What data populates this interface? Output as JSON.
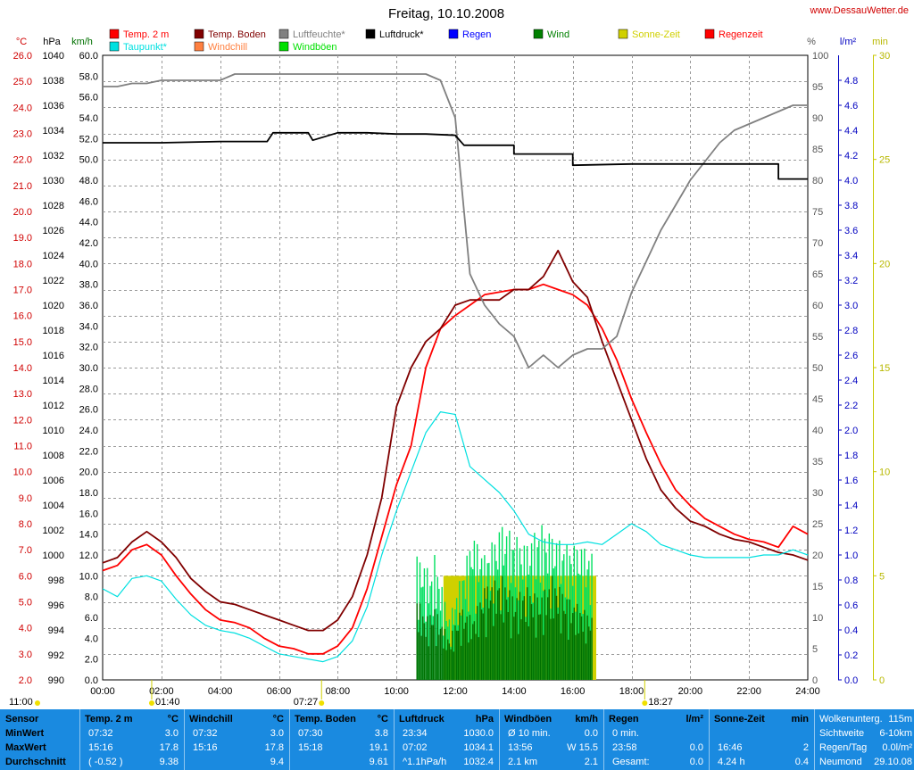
{
  "chart_data": {
    "type": "line",
    "title": "Freitag, 10.10.2008",
    "site": "www.DessauWetter.de",
    "time_ticks": [
      "00:00",
      "02:00",
      "04:00",
      "06:00",
      "08:00",
      "10:00",
      "12:00",
      "14:00",
      "16:00",
      "18:00",
      "20:00",
      "22:00",
      "24:00"
    ],
    "x_range_hours": [
      0,
      24
    ],
    "grid": true,
    "axes": {
      "temp": {
        "unit": "°C",
        "range": [
          2.0,
          26.0
        ],
        "step": 1.0,
        "color": "#d00000"
      },
      "pressure": {
        "unit": "hPa",
        "range": [
          990,
          1040
        ],
        "step": 2,
        "color": "#000000"
      },
      "wind": {
        "unit": "km/h",
        "range": [
          0.0,
          60.0
        ],
        "step": 2.0,
        "color": "#007000"
      },
      "humidity": {
        "unit": "%",
        "range": [
          0,
          100
        ],
        "step": 5,
        "color": "#555555"
      },
      "rain": {
        "unit": "l/m²",
        "range": [
          0.0,
          5.0
        ],
        "step": 0.2,
        "color": "#0000c0"
      },
      "sun": {
        "unit": "min",
        "range": [
          0,
          30
        ],
        "step": 5,
        "color": "#b8b800"
      }
    },
    "legend": [
      {
        "label": "Temp. 2 m",
        "color": "#ff0000"
      },
      {
        "label": "Taupunkt*",
        "color": "#00e0e0"
      },
      {
        "label": "Temp. Boden",
        "color": "#800000"
      },
      {
        "label": "Windchill",
        "color": "#ff8040"
      },
      {
        "label": "Luftfeuchte*",
        "color": "#808080"
      },
      {
        "label": "Windböen",
        "color": "#00e000"
      },
      {
        "label": "Luftdruck*",
        "color": "#000000"
      },
      {
        "label": "Regen",
        "color": "#0000ff"
      },
      {
        "label": "Wind",
        "color": "#008000"
      },
      {
        "label": "Sonne-Zeit",
        "color": "#d0d000"
      },
      {
        "label": "Regenzeit",
        "color": "#ff0000"
      }
    ],
    "series": [
      {
        "name": "Temp. 2 m",
        "axis": "temp",
        "color": "#ff0000",
        "x": [
          0,
          0.5,
          1,
          1.5,
          2,
          2.5,
          3,
          3.5,
          4,
          4.5,
          5,
          5.5,
          6,
          6.5,
          7,
          7.5,
          8,
          8.5,
          9,
          9.5,
          10,
          10.5,
          11,
          11.5,
          12,
          12.5,
          13,
          13.5,
          14,
          14.5,
          15,
          15.5,
          16,
          16.5,
          17,
          17.5,
          18,
          18.5,
          19,
          19.5,
          20,
          20.5,
          21,
          21.5,
          22,
          22.5,
          23,
          23.5,
          24
        ],
        "y": [
          6.2,
          6.4,
          7.0,
          7.2,
          6.8,
          6.0,
          5.3,
          4.7,
          4.3,
          4.2,
          4.0,
          3.6,
          3.3,
          3.2,
          3.0,
          3.0,
          3.3,
          4.0,
          5.5,
          7.5,
          9.5,
          11.0,
          14.0,
          15.5,
          16.0,
          16.4,
          16.8,
          16.9,
          17.0,
          17.0,
          17.2,
          17.0,
          16.8,
          16.4,
          15.5,
          14.3,
          12.8,
          11.5,
          10.3,
          9.3,
          8.7,
          8.2,
          7.9,
          7.6,
          7.4,
          7.3,
          7.1,
          7.9,
          7.6
        ]
      },
      {
        "name": "Temp. Boden",
        "axis": "temp",
        "color": "#800000",
        "x": [
          0,
          0.5,
          1,
          1.5,
          2,
          2.5,
          3,
          3.5,
          4,
          4.5,
          5,
          5.5,
          6,
          6.5,
          7,
          7.5,
          8,
          8.5,
          9,
          9.5,
          10,
          10.5,
          11,
          11.5,
          12,
          12.5,
          13,
          13.5,
          14,
          14.5,
          15,
          15.5,
          16,
          16.5,
          17,
          17.5,
          18,
          18.5,
          19,
          19.5,
          20,
          20.5,
          21,
          21.5,
          22,
          22.5,
          23,
          23.5,
          24
        ],
        "y": [
          6.5,
          6.7,
          7.3,
          7.7,
          7.3,
          6.7,
          5.9,
          5.4,
          5.0,
          4.9,
          4.7,
          4.5,
          4.3,
          4.1,
          3.9,
          3.9,
          4.3,
          5.2,
          6.8,
          9.0,
          12.5,
          14.0,
          15.0,
          15.5,
          16.4,
          16.6,
          16.6,
          16.6,
          17.0,
          17.0,
          17.5,
          18.5,
          17.3,
          16.7,
          15.0,
          13.5,
          12.0,
          10.5,
          9.3,
          8.6,
          8.1,
          7.9,
          7.6,
          7.4,
          7.3,
          7.1,
          6.9,
          6.8,
          6.6
        ]
      },
      {
        "name": "Taupunkt*",
        "axis": "temp",
        "color": "#00e0e0",
        "x": [
          0,
          0.5,
          1,
          1.5,
          2,
          2.5,
          3,
          3.5,
          4,
          4.5,
          5,
          5.5,
          6,
          6.5,
          7,
          7.5,
          8,
          8.5,
          9,
          9.5,
          10,
          10.5,
          11,
          11.5,
          12,
          12.5,
          13,
          13.5,
          14,
          14.5,
          15,
          15.5,
          16,
          16.5,
          17,
          17.5,
          18,
          18.5,
          19,
          19.5,
          20,
          20.5,
          21,
          21.5,
          22,
          22.5,
          23,
          23.5,
          24
        ],
        "y": [
          5.5,
          5.2,
          5.9,
          6.0,
          5.8,
          5.1,
          4.5,
          4.1,
          3.9,
          3.8,
          3.6,
          3.3,
          3.0,
          2.9,
          2.8,
          2.7,
          2.9,
          3.5,
          4.8,
          6.8,
          8.5,
          10.0,
          11.5,
          12.3,
          12.2,
          10.2,
          9.7,
          9.2,
          8.5,
          7.6,
          7.3,
          7.2,
          7.2,
          7.3,
          7.2,
          7.6,
          8.0,
          7.7,
          7.2,
          7.0,
          6.8,
          6.7,
          6.7,
          6.7,
          6.7,
          6.8,
          6.8,
          7.0,
          6.8
        ]
      },
      {
        "name": "Luftfeuchte*",
        "axis": "humidity",
        "color": "#808080",
        "x": [
          0,
          0.5,
          1,
          1.5,
          2,
          2.5,
          3,
          3.5,
          4,
          4.5,
          5,
          5.5,
          6,
          6.5,
          7,
          7.5,
          8,
          8.5,
          9,
          9.5,
          10,
          10.5,
          11,
          11.5,
          12,
          12.5,
          13,
          13.5,
          14,
          14.5,
          15,
          15.5,
          16,
          16.5,
          17,
          17.5,
          18,
          18.5,
          19,
          19.5,
          20,
          20.5,
          21,
          21.5,
          22,
          22.5,
          23,
          23.5,
          24
        ],
        "y": [
          95,
          95,
          95.5,
          95.5,
          96,
          96,
          96,
          96,
          96,
          97,
          97,
          97,
          97,
          97,
          97,
          97,
          97,
          97,
          97,
          97,
          97,
          97,
          97,
          96,
          90,
          65,
          60,
          57,
          55,
          50,
          52,
          50,
          52,
          53,
          53,
          55,
          62,
          67,
          72,
          76,
          80,
          83,
          86,
          88,
          89,
          90,
          91,
          92,
          92
        ]
      },
      {
        "name": "Luftdruck*",
        "axis": "pressure",
        "color": "#000000",
        "x": [
          0,
          2,
          4,
          5.6,
          5.8,
          7,
          7.15,
          8,
          9,
          10,
          11,
          12,
          12.3,
          14,
          14,
          16,
          16,
          18,
          20,
          22,
          23,
          23,
          24
        ],
        "y": [
          1033.0,
          1033.0,
          1033.1,
          1033.1,
          1033.8,
          1033.8,
          1033.2,
          1033.8,
          1033.8,
          1033.7,
          1033.7,
          1033.6,
          1032.8,
          1032.8,
          1032.1,
          1032.1,
          1031.2,
          1031.3,
          1031.3,
          1031.3,
          1031.3,
          1030.1,
          1030.1
        ]
      },
      {
        "name": "Windböen",
        "axis": "wind",
        "color": "#00e000",
        "x": [
          10.7,
          11.3,
          11.3,
          11.8,
          12.6,
          13.0,
          13.6,
          14.0,
          14.4,
          14.9,
          15.3,
          15.8,
          16.3,
          16.7
        ],
        "y": [
          12.0,
          10.0,
          12.0,
          6.0,
          14.0,
          12.0,
          15.0,
          14.0,
          13.0,
          15.0,
          14.0,
          13.0,
          13.0,
          12.0
        ]
      },
      {
        "name": "Wind",
        "axis": "wind",
        "color": "#007000",
        "x": [
          10.7,
          11.0,
          11.3,
          11.8,
          12.2,
          12.6,
          13.0,
          13.6,
          14.0,
          14.4,
          14.9,
          15.3,
          15.8,
          16.3,
          16.7
        ],
        "y": [
          8.0,
          6.0,
          7.0,
          4.0,
          7.0,
          6.0,
          9.0,
          10.0,
          8.0,
          9.0,
          8.0,
          10.0,
          8.0,
          7.0,
          6.0
        ]
      },
      {
        "name": "Sonne-Zeit",
        "axis": "sun",
        "color": "#d0d000",
        "x": [
          11.6,
          16.8
        ],
        "y": [
          5,
          5
        ]
      }
    ],
    "markers": [
      {
        "label": "11:00",
        "pos": 0
      },
      {
        "label": "01:40",
        "pos": 1.67
      },
      {
        "label": "07:27",
        "pos": 7.45
      },
      {
        "label": "18:27",
        "pos": 18.45
      }
    ]
  },
  "table": {
    "rows": [
      "Sensor",
      "MinWert",
      "MaxWert",
      "Durchschnitt"
    ],
    "columns": [
      {
        "header": "Temp. 2 m",
        "unit": "°C",
        "cells": [
          [
            "07:32",
            "3.0"
          ],
          [
            "15:16",
            "17.8"
          ],
          [
            "( -0.52 )",
            "9.38"
          ]
        ]
      },
      {
        "header": "Windchill",
        "unit": "°C",
        "cells": [
          [
            "07:32",
            "3.0"
          ],
          [
            "15:16",
            "17.8"
          ],
          [
            "",
            "9.4"
          ]
        ]
      },
      {
        "header": "Temp. Boden",
        "unit": "°C",
        "cells": [
          [
            "07:30",
            "3.8"
          ],
          [
            "15:18",
            "19.1"
          ],
          [
            "",
            "9.61"
          ]
        ]
      },
      {
        "header": "Luftdruck",
        "unit": "hPa",
        "cells": [
          [
            "23:34",
            "1030.0"
          ],
          [
            "07:02",
            "1034.1"
          ],
          [
            "^1.1hPa/h",
            "1032.4"
          ]
        ]
      },
      {
        "header": "Windböen",
        "unit": "km/h",
        "cells": [
          [
            "Ø 10 min.",
            "0.0"
          ],
          [
            "13:56",
            "W 15.5"
          ],
          [
            "2.1 km",
            "2.1"
          ]
        ]
      },
      {
        "header": "Regen",
        "unit": "l/m²",
        "cells": [
          [
            "0 min.",
            ""
          ],
          [
            "23:58",
            "0.0"
          ],
          [
            "Gesamt:",
            "0.0"
          ]
        ]
      },
      {
        "header": "Sonne-Zeit",
        "unit": "min",
        "cells": [
          [
            "",
            ""
          ],
          [
            "16:46",
            "2"
          ],
          [
            "4.24 h",
            "0.4"
          ]
        ]
      }
    ],
    "extra": [
      [
        "Wolkenunterg.",
        "115m"
      ],
      [
        "Sichtweite",
        "6-10km"
      ],
      [
        "Regen/Tag",
        "0.0l/m²"
      ],
      [
        "Neumond",
        "29.10.08"
      ]
    ]
  }
}
